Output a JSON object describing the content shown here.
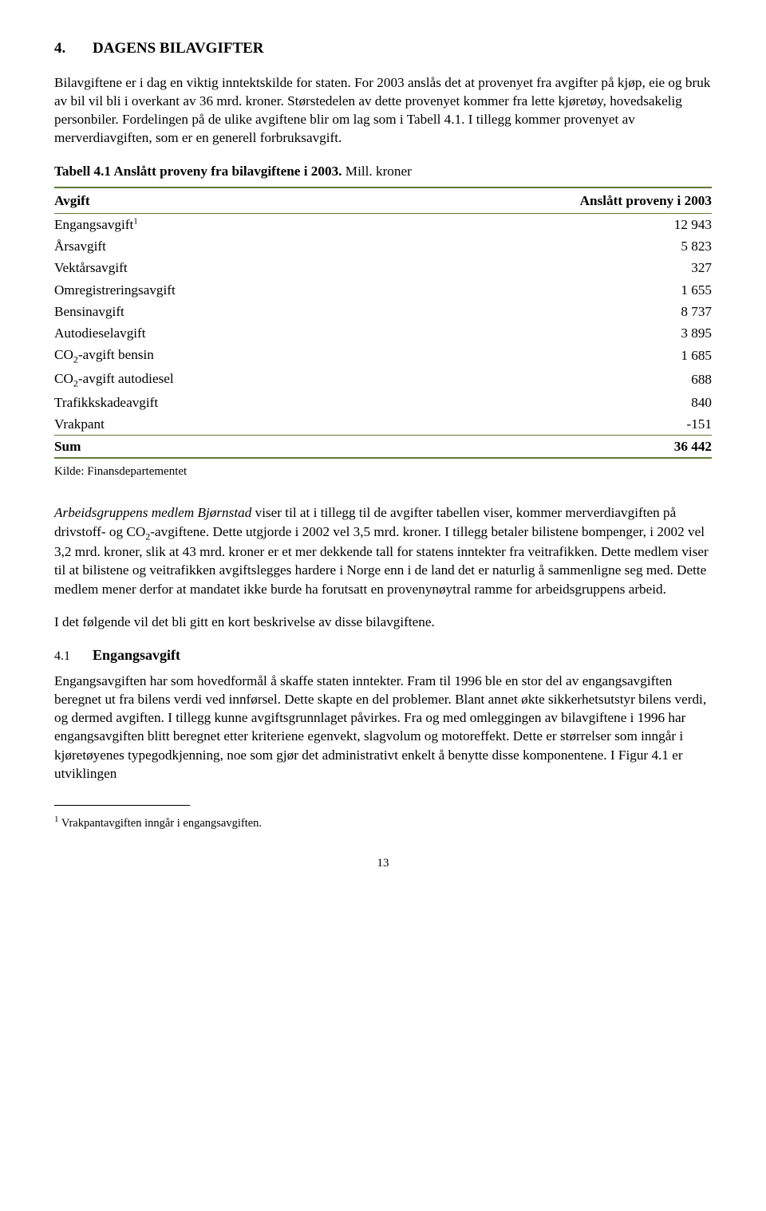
{
  "heading": {
    "number": "4.",
    "title": "DAGENS BILAVGIFTER"
  },
  "para1": "Bilavgiftene er i dag en viktig inntektskilde for staten. For 2003 anslås det at provenyet fra avgifter på kjøp, eie og bruk av bil vil bli i overkant av 36 mrd. kroner. Størstedelen av dette provenyet kommer fra lette kjøretøy, hovedsakelig personbiler. Fordelingen på de ulike avgiftene blir om lag som i Tabell 4.1. I tillegg kommer provenyet av merverdiavgiften, som er en generell forbruksavgift.",
  "table": {
    "caption_bold": "Tabell 4.1 Anslått proveny fra bilavgiftene i 2003.",
    "caption_rest": " Mill. kroner",
    "header_left": "Avgift",
    "header_right": "Anslått proveny i 2003",
    "rows": [
      {
        "label": "Engangsavgift",
        "sup": "1",
        "value": "12 943"
      },
      {
        "label": "Årsavgift",
        "value": "5 823"
      },
      {
        "label": "Vektårsavgift",
        "value": "327"
      },
      {
        "label": "Omregistreringsavgift",
        "value": "1 655"
      },
      {
        "label": "Bensinavgift",
        "value": "8 737"
      },
      {
        "label": "Autodieselavgift",
        "value": "3 895"
      },
      {
        "label": "CO2-avgift bensin",
        "co2": true,
        "suffix": "-avgift bensin",
        "value": "1 685"
      },
      {
        "label": "CO2-avgift autodiesel",
        "co2": true,
        "suffix": "-avgift autodiesel",
        "value": "688"
      },
      {
        "label": "Trafikkskadeavgift",
        "value": "840"
      },
      {
        "label": "Vrakpant",
        "value": "-151"
      }
    ],
    "sum_label": "Sum",
    "sum_value": "36 442",
    "source": "Kilde: Finansdepartementet",
    "border_color": "#5d7a3a"
  },
  "para2_italic": "Arbeidsgruppens medlem Bjørnstad",
  "para2_rest": " viser til at i tillegg til de avgifter tabellen viser, kommer merverdiavgiften på drivstoff- og CO",
  "para2_sub": "2",
  "para2_rest2": "-avgiftene. Dette utgjorde i 2002 vel 3,5 mrd. kroner. I tillegg betaler bilistene bompenger, i 2002 vel 3,2 mrd. kroner, slik at 43 mrd. kroner er et mer dekkende tall for statens inntekter fra veitrafikken. Dette medlem viser til at bilistene og veitrafikken avgiftslegges hardere i Norge enn i de land det er naturlig å sammenligne seg med. Dette medlem mener derfor at mandatet ikke burde ha forutsatt en provenynøytral ramme for arbeidsgruppens arbeid.",
  "para3": "I det følgende vil det bli gitt en kort beskrivelse av disse bilavgiftene.",
  "subheading": {
    "number": "4.1",
    "title": "Engangsavgift"
  },
  "para4": "Engangsavgiften har som hovedformål å skaffe staten inntekter. Fram til 1996 ble en stor del av engangsavgiften beregnet ut fra bilens verdi ved innførsel. Dette skapte en del problemer. Blant annet økte sikkerhetsutstyr bilens verdi, og dermed avgiften. I tillegg kunne avgiftsgrunnlaget påvirkes. Fra og med omleggingen av bilavgiftene i 1996 har engangsavgiften blitt beregnet etter kriteriene egenvekt, slagvolum og motoreffekt. Dette er størrelser som inngår i kjøretøyenes typegodkjenning, noe som gjør det administrativt enkelt å benytte disse komponentene. I Figur 4.1 er utviklingen",
  "footnote_sup": "1",
  "footnote": " Vrakpantavgiften inngår i engangsavgiften.",
  "page_number": "13"
}
